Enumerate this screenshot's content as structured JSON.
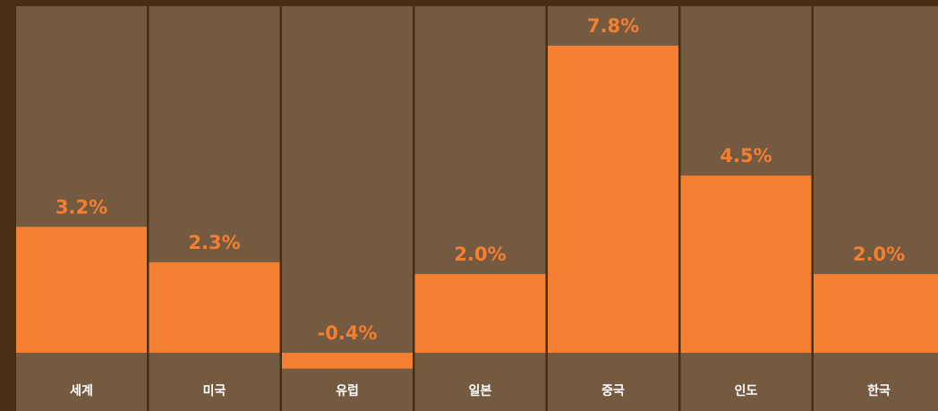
{
  "chart_data": {
    "type": "bar",
    "categories": [
      "세계",
      "미국",
      "유럽",
      "일본",
      "중국",
      "인도",
      "한국"
    ],
    "values": [
      3.2,
      2.3,
      -0.4,
      2.0,
      7.8,
      4.5,
      2.0
    ],
    "value_labels": [
      "3.2%",
      "2.3%",
      "-0.4%",
      "2.0%",
      "7.8%",
      "4.5%",
      "2.0%"
    ],
    "color": "#f47f30",
    "ylim": [
      0,
      8.8
    ]
  }
}
